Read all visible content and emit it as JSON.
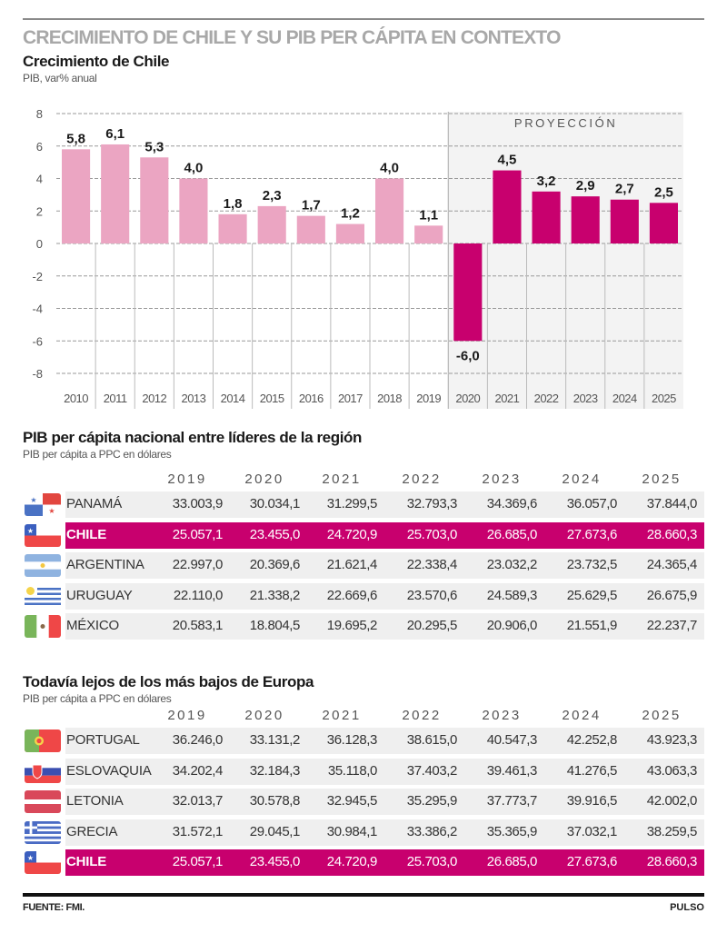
{
  "header": {
    "main_title": "CRECIMIENTO DE CHILE Y SU PIB PER CÁPITA EN CONTEXTO"
  },
  "chart_data": {
    "type": "bar",
    "title": "Crecimiento de Chile",
    "subtitle": "PIB, var% anual",
    "xlabel": "",
    "ylabel": "",
    "ylim": [
      -8,
      8
    ],
    "yticks": [
      8,
      6,
      4,
      2,
      0,
      -2,
      -4,
      -6,
      -8
    ],
    "grid": true,
    "categories": [
      "2010",
      "2011",
      "2012",
      "2013",
      "2014",
      "2015",
      "2016",
      "2017",
      "2018",
      "2019",
      "2020",
      "2021",
      "2022",
      "2023",
      "2024",
      "2025"
    ],
    "values": [
      5.8,
      6.1,
      5.3,
      4.0,
      1.8,
      2.3,
      1.7,
      1.2,
      4.0,
      1.1,
      -6.0,
      4.5,
      3.2,
      2.9,
      2.7,
      2.5
    ],
    "value_labels": [
      "5,8",
      "6,1",
      "5,3",
      "4,0",
      "1,8",
      "2,3",
      "1,7",
      "1,2",
      "4,0",
      "1,1",
      "-6,0",
      "4,5",
      "3,2",
      "2,9",
      "2,7",
      "2,5"
    ],
    "projection": {
      "label": "PROYECCIÓN",
      "from": "2020",
      "to": "2025"
    },
    "colors": {
      "historical": "#eba5c2",
      "projection": "#c8006e",
      "projection_bg": "#f3f3f3"
    }
  },
  "table1": {
    "title": "PIB per cápita nacional entre líderes de la región",
    "subtitle": "PIB per cápita a PPC en dólares",
    "years": [
      "2019",
      "2020",
      "2021",
      "2022",
      "2023",
      "2024",
      "2025"
    ],
    "rows": [
      {
        "country": "PANAMÁ",
        "flag": "panama-flag",
        "highlight": false,
        "values": [
          "33.003,9",
          "30.034,1",
          "31.299,5",
          "32.793,3",
          "34.369,6",
          "36.057,0",
          "37.844,0"
        ]
      },
      {
        "country": "CHILE",
        "flag": "chile-flag",
        "highlight": true,
        "values": [
          "25.057,1",
          "23.455,0",
          "24.720,9",
          "25.703,0",
          "26.685,0",
          "27.673,6",
          "28.660,3"
        ]
      },
      {
        "country": "ARGENTINA",
        "flag": "argentina-flag",
        "highlight": false,
        "values": [
          "22.997,0",
          "20.369,6",
          "21.621,4",
          "22.338,4",
          "23.032,2",
          "23.732,5",
          "24.365,4"
        ]
      },
      {
        "country": "URUGUAY",
        "flag": "uruguay-flag",
        "highlight": false,
        "values": [
          "22.110,0",
          "21.338,2",
          "22.669,6",
          "23.570,6",
          "24.589,3",
          "25.629,5",
          "26.675,9"
        ]
      },
      {
        "country": "MÉXICO",
        "flag": "mexico-flag",
        "highlight": false,
        "values": [
          "20.583,1",
          "18.804,5",
          "19.695,2",
          "20.295,5",
          "20.906,0",
          "21.551,9",
          "22.237,7"
        ]
      }
    ]
  },
  "table2": {
    "title": "Todavía lejos de los más bajos de Europa",
    "subtitle": "PIB per cápita a PPC en dólares",
    "years": [
      "2019",
      "2020",
      "2021",
      "2022",
      "2023",
      "2024",
      "2025"
    ],
    "rows": [
      {
        "country": "PORTUGAL",
        "flag": "portugal-flag",
        "highlight": false,
        "values": [
          "36.246,0",
          "33.131,2",
          "36.128,3",
          "38.615,0",
          "40.547,3",
          "42.252,8",
          "43.923,3"
        ]
      },
      {
        "country": "ESLOVAQUIA",
        "flag": "slovakia-flag",
        "highlight": false,
        "values": [
          "34.202,4",
          "32.184,3",
          "35.118,0",
          "37.403,2",
          "39.461,3",
          "41.276,5",
          "43.063,3"
        ]
      },
      {
        "country": "LETONIA",
        "flag": "latvia-flag",
        "highlight": false,
        "values": [
          "32.013,7",
          "30.578,8",
          "32.945,5",
          "35.295,9",
          "37.773,7",
          "39.916,5",
          "42.002,0"
        ]
      },
      {
        "country": "GRECIA",
        "flag": "greece-flag",
        "highlight": false,
        "values": [
          "31.572,1",
          "29.045,1",
          "30.984,1",
          "33.386,2",
          "35.365,9",
          "37.032,1",
          "38.259,5"
        ]
      },
      {
        "country": "CHILE",
        "flag": "chile-flag",
        "highlight": true,
        "values": [
          "25.057,1",
          "23.455,0",
          "24.720,9",
          "25.703,0",
          "26.685,0",
          "27.673,6",
          "28.660,3"
        ]
      }
    ]
  },
  "footer": {
    "source": "FUENTE: FMI.",
    "brand": "PULSO"
  }
}
